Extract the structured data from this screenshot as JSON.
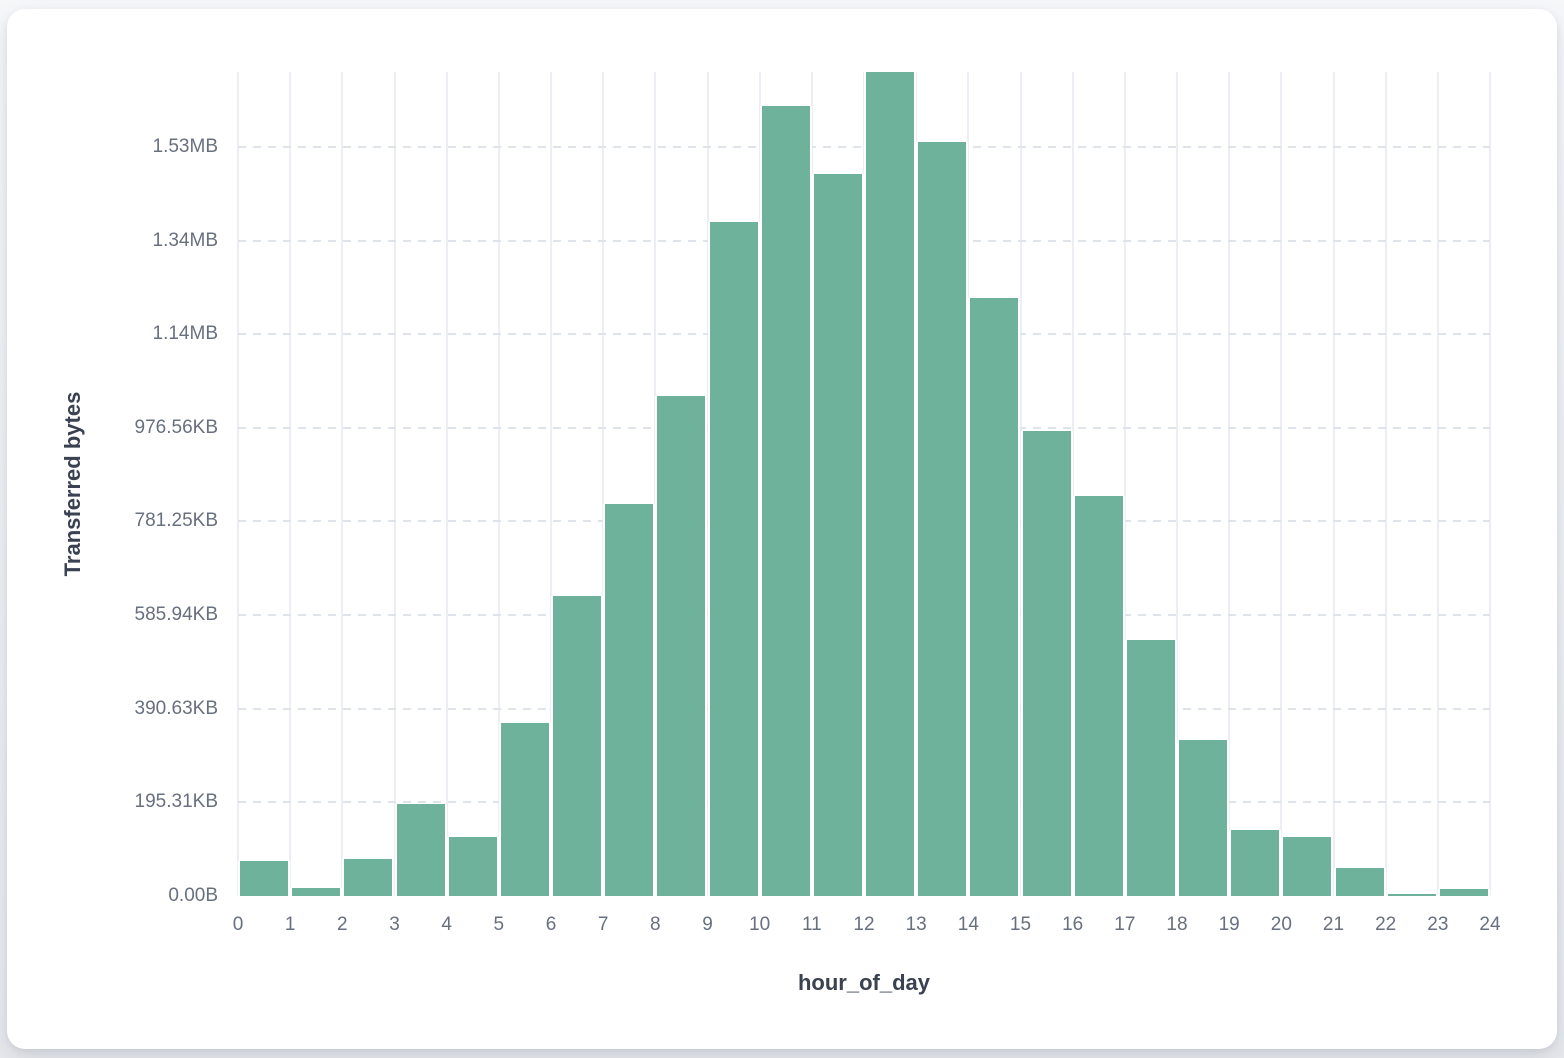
{
  "colors": {
    "bar": "#6FB29B",
    "grid_vertical": "#eceef3",
    "grid_dashed": "#dfe3ea",
    "tick_text": "#68707f",
    "axis_title_text": "#3a4150",
    "card_background": "#ffffff",
    "page_background": "#eef0f3"
  },
  "chart_data": {
    "type": "bar",
    "title": "",
    "xlabel": "hour_of_day",
    "ylabel": "Transferred bytes",
    "x": [
      0,
      1,
      2,
      3,
      4,
      5,
      6,
      7,
      8,
      9,
      10,
      11,
      12,
      13,
      14,
      15,
      16,
      17,
      18,
      19,
      20,
      21,
      22,
      23
    ],
    "x_bin_width": 1,
    "values": [
      75000,
      17000,
      79000,
      196000,
      126000,
      369000,
      641000,
      838000,
      1068000,
      1440000,
      1688000,
      1543000,
      1760000,
      1611000,
      1278000,
      994000,
      855000,
      546000,
      333000,
      141000,
      126000,
      60000,
      5000,
      14000
    ],
    "value_units": "bytes",
    "ylim": [
      0,
      1760000
    ],
    "xlim": [
      0,
      24
    ],
    "x_tick_labels": [
      "0",
      "1",
      "2",
      "3",
      "4",
      "5",
      "6",
      "7",
      "8",
      "9",
      "10",
      "11",
      "12",
      "13",
      "14",
      "15",
      "16",
      "17",
      "18",
      "19",
      "20",
      "21",
      "22",
      "23",
      "24"
    ],
    "y_ticks": [
      {
        "bytes": 0,
        "label": "0.00B"
      },
      {
        "bytes": 200000,
        "label": "195.31KB"
      },
      {
        "bytes": 400000,
        "label": "390.63KB"
      },
      {
        "bytes": 600000,
        "label": "585.94KB"
      },
      {
        "bytes": 800000,
        "label": "781.25KB"
      },
      {
        "bytes": 1000000,
        "label": "976.56KB"
      },
      {
        "bytes": 1200000,
        "label": "1.14MB"
      },
      {
        "bytes": 1400000,
        "label": "1.34MB"
      },
      {
        "bytes": 1600000,
        "label": "1.53MB"
      }
    ],
    "grid": {
      "vertical_solid": true,
      "horizontal_dashed": true
    },
    "legend": "none"
  }
}
